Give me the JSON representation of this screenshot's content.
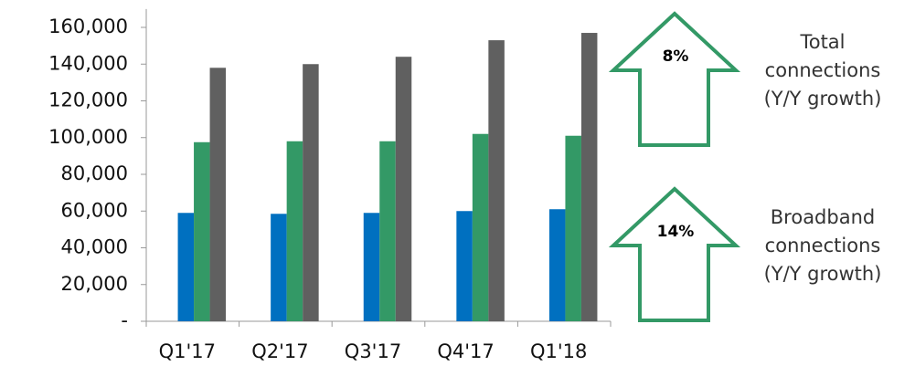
{
  "chart_data": {
    "type": "bar",
    "categories": [
      "Q1'17",
      "Q2'17",
      "Q3'17",
      "Q4'17",
      "Q1'18"
    ],
    "series": [
      {
        "color": "#0070c0",
        "values": [
          59000,
          58500,
          59000,
          60000,
          61000
        ]
      },
      {
        "color": "#339966",
        "values": [
          97500,
          98000,
          98000,
          102000,
          101000
        ]
      },
      {
        "color": "#606060",
        "values": [
          138000,
          140000,
          144000,
          153000,
          157000
        ]
      }
    ],
    "ylim": [
      0,
      170000
    ],
    "yticks": [
      {
        "value": 0,
        "label": "-"
      },
      {
        "value": 20000,
        "label": "20,000"
      },
      {
        "value": 40000,
        "label": "40,000"
      },
      {
        "value": 60000,
        "label": "60,000"
      },
      {
        "value": 80000,
        "label": "80,000"
      },
      {
        "value": 100000,
        "label": "100,000"
      },
      {
        "value": 120000,
        "label": "120,000"
      },
      {
        "value": 140000,
        "label": "140,000"
      },
      {
        "value": 160000,
        "label": "160,000"
      }
    ],
    "annotations": [
      {
        "label": "8%",
        "text": [
          "Total",
          "connections",
          "(Y/Y growth)"
        ]
      },
      {
        "label": "14%",
        "text": [
          "Broadband",
          "connections",
          "(Y/Y growth)"
        ]
      }
    ],
    "arrow_color": "#339966"
  }
}
